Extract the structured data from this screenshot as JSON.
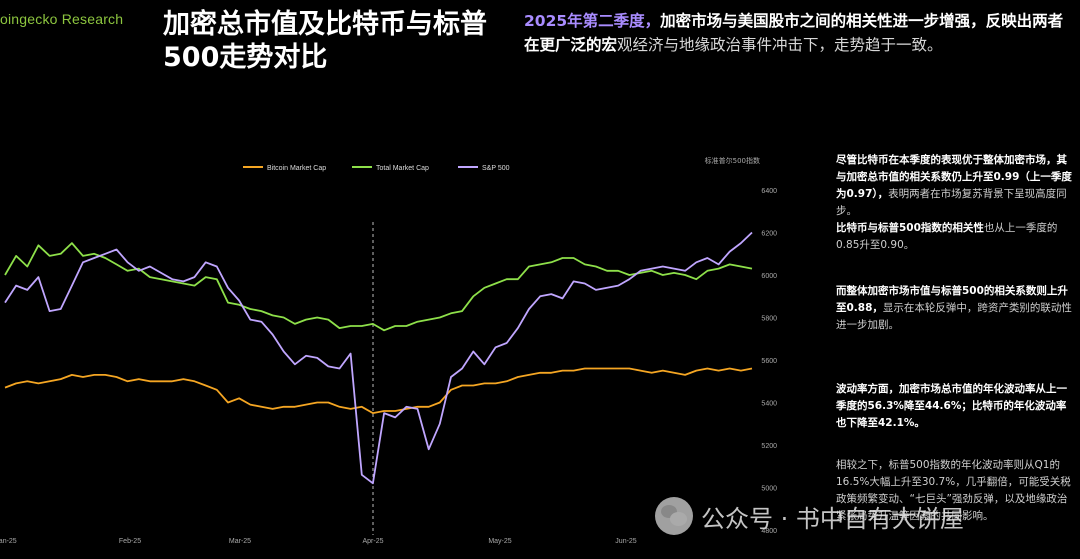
{
  "brand": "oingecko Research",
  "title": "加密总市值及比特币与标普500走势对比",
  "headline": {
    "part1": "2025年第二季度，",
    "part2": "加密市场与美国股市之间的相关性进一步增强，反映出两者在更广泛的宏",
    "part3": "观经济与地缘政治事件冲击下，走势趋于一致。"
  },
  "paragraphs": [
    {
      "bold": "尽管比特币在本季度的表现优于整体加密市场，其与加密总市值的相关系数仍上升至0.99（上一季度为0.97），",
      "text": "表明两者在市场复苏背景下呈现高度同步。"
    },
    {
      "bold": "比特币与标普500指数的相关性",
      "text": "也从上一季度的0.85升至0.90。"
    },
    {
      "bold": "而整体加密市场市值与标普500的相关系数则上升至0.88，",
      "text": "显示在本轮反弹中，跨资产类别的联动性进一步加剧。"
    },
    {
      "bold": "波动率方面，加密市场总市值的年化波动率从上一季度的56.3%降至44.6%；比特币的年化波动率也下降至42.1%。",
      "text": ""
    },
    {
      "bold": "",
      "text": "相较之下，标普500指数的年化波动率则从Q1的16.5%大幅上升至30.7%，几乎翻倍，可能受关税政策频繁变动、“七巨头”强劲反弹，以及地缘政治紧张局势升温等因素的共同影响。"
    }
  ],
  "watermark": "公众号 · 书中自有大饼屋",
  "colors": {
    "btc": "#f5a623",
    "total": "#8ee04a",
    "spx": "#c0a6ff"
  },
  "chart_data": {
    "type": "line",
    "x_ticks": [
      "Jan-25",
      "Feb-25",
      "Mar-25",
      "Apr-25",
      "May-25",
      "Jun-25"
    ],
    "right_axis_label": "标准普尔500指数",
    "right_ticks": [
      "6400",
      "6200",
      "6000",
      "5800",
      "5600",
      "5400",
      "5200",
      "5000",
      "4800"
    ],
    "right_ylim": [
      4800,
      6400
    ],
    "dashed_marker_at": "Apr-25",
    "legend": [
      {
        "name": "Bitcoin Market Cap",
        "color": "#f5a623"
      },
      {
        "name": "Total Market Cap",
        "color": "#8ee04a"
      },
      {
        "name": "S&P 500",
        "color": "#c0a6ff"
      }
    ],
    "series": [
      {
        "name": "S&P 500",
        "axis": "right",
        "values": [
          5870,
          5950,
          5930,
          5990,
          5830,
          5840,
          5950,
          6060,
          6080,
          6100,
          6120,
          6060,
          6020,
          6040,
          6010,
          5980,
          5970,
          5990,
          6060,
          6040,
          5940,
          5880,
          5790,
          5780,
          5720,
          5640,
          5580,
          5620,
          5610,
          5570,
          5560,
          5630,
          5060,
          5020,
          5350,
          5330,
          5380,
          5370,
          5180,
          5300,
          5520,
          5560,
          5640,
          5580,
          5660,
          5680,
          5750,
          5840,
          5900,
          5910,
          5890,
          5970,
          5960,
          5930,
          5940,
          5950,
          5980,
          6020,
          6030,
          6040,
          6030,
          6020,
          6060,
          6080,
          6050,
          6110,
          6150,
          6200
        ]
      },
      {
        "name": "Total Market Cap",
        "axis": "right",
        "values": [
          6000,
          6090,
          6040,
          6140,
          6090,
          6100,
          6150,
          6090,
          6100,
          6080,
          6050,
          6020,
          6030,
          5990,
          5980,
          5970,
          5960,
          5950,
          5990,
          5980,
          5870,
          5860,
          5840,
          5830,
          5810,
          5800,
          5770,
          5790,
          5800,
          5790,
          5750,
          5760,
          5760,
          5770,
          5740,
          5760,
          5760,
          5780,
          5790,
          5800,
          5820,
          5830,
          5900,
          5940,
          5960,
          5980,
          5980,
          6040,
          6050,
          6060,
          6080,
          6080,
          6050,
          6040,
          6020,
          6020,
          6000,
          6010,
          6020,
          6000,
          6010,
          6000,
          5980,
          6020,
          6030,
          6050,
          6040,
          6030
        ]
      },
      {
        "name": "Bitcoin Market Cap",
        "axis": "hidden",
        "values": [
          5470,
          5490,
          5500,
          5490,
          5500,
          5510,
          5530,
          5520,
          5530,
          5530,
          5520,
          5500,
          5510,
          5500,
          5500,
          5500,
          5510,
          5500,
          5480,
          5460,
          5400,
          5420,
          5390,
          5380,
          5370,
          5380,
          5380,
          5390,
          5400,
          5400,
          5380,
          5370,
          5380,
          5350,
          5360,
          5360,
          5370,
          5380,
          5380,
          5400,
          5460,
          5480,
          5480,
          5490,
          5490,
          5500,
          5520,
          5530,
          5540,
          5540,
          5550,
          5550,
          5560,
          5560,
          5560,
          5560,
          5560,
          5550,
          5540,
          5550,
          5540,
          5530,
          5550,
          5560,
          5550,
          5560,
          5550,
          5560
        ]
      }
    ]
  }
}
